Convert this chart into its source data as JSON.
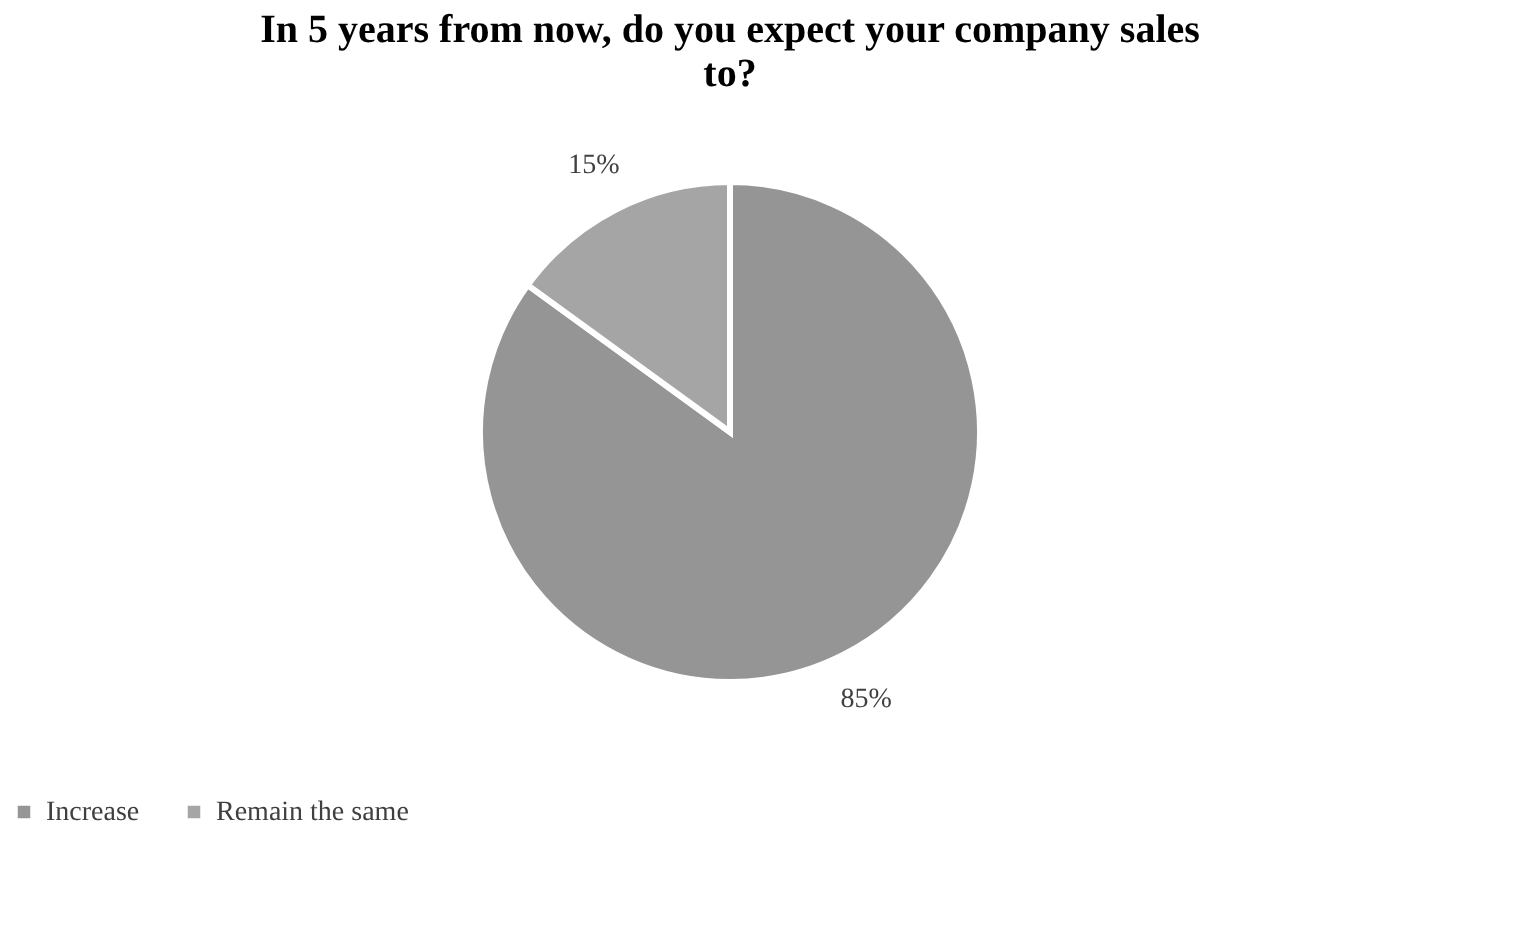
{
  "chart_data": {
    "type": "pie",
    "title": "In 5 years from now, do you expect your company sales to?",
    "categories": [
      "Increase",
      "Remain the same"
    ],
    "values": [
      85,
      15
    ],
    "colors": [
      "#959595",
      "#a5a5a5"
    ],
    "value_labels": [
      "85%",
      "15%"
    ],
    "legend": "bottom"
  }
}
